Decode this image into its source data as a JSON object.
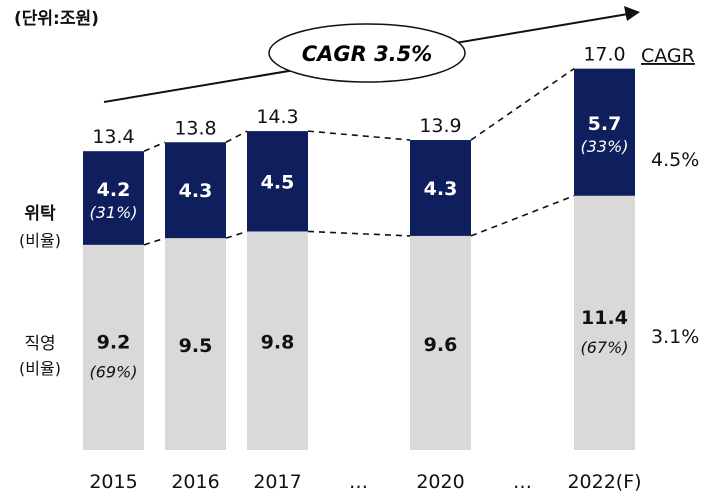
{
  "unit_label": "(단위:조원)",
  "cagr_bubble": "CAGR 3.5%",
  "cagr_header": "CAGR",
  "row_labels": {
    "consignment": {
      "title": "위탁",
      "sub": "(비율)"
    },
    "direct": {
      "title": "직영",
      "sub": "(비율)"
    }
  },
  "cagr_values": {
    "consignment": "4.5%",
    "direct": "3.1%"
  },
  "colors": {
    "consignment": "#0f1e5c",
    "direct": "#d9d9d9",
    "bubble_text": "#1f3a8a"
  },
  "chart_data": {
    "type": "bar",
    "stacked": true,
    "categories": [
      "2015",
      "2016",
      "2017",
      "…",
      "2020",
      "…",
      "2022(F)"
    ],
    "totals": [
      "13.4",
      "13.8",
      "14.3",
      null,
      "13.9",
      null,
      "17.0"
    ],
    "series": [
      {
        "name": "직영",
        "values": [
          9.2,
          9.5,
          9.8,
          null,
          9.6,
          null,
          11.4
        ],
        "ratios": [
          "(69%)",
          null,
          null,
          null,
          null,
          null,
          "(67%)"
        ]
      },
      {
        "name": "위탁",
        "values": [
          4.2,
          4.3,
          4.5,
          null,
          4.3,
          null,
          5.7
        ],
        "ratios": [
          "(31%)",
          null,
          null,
          null,
          null,
          null,
          "(33%)"
        ]
      }
    ]
  }
}
